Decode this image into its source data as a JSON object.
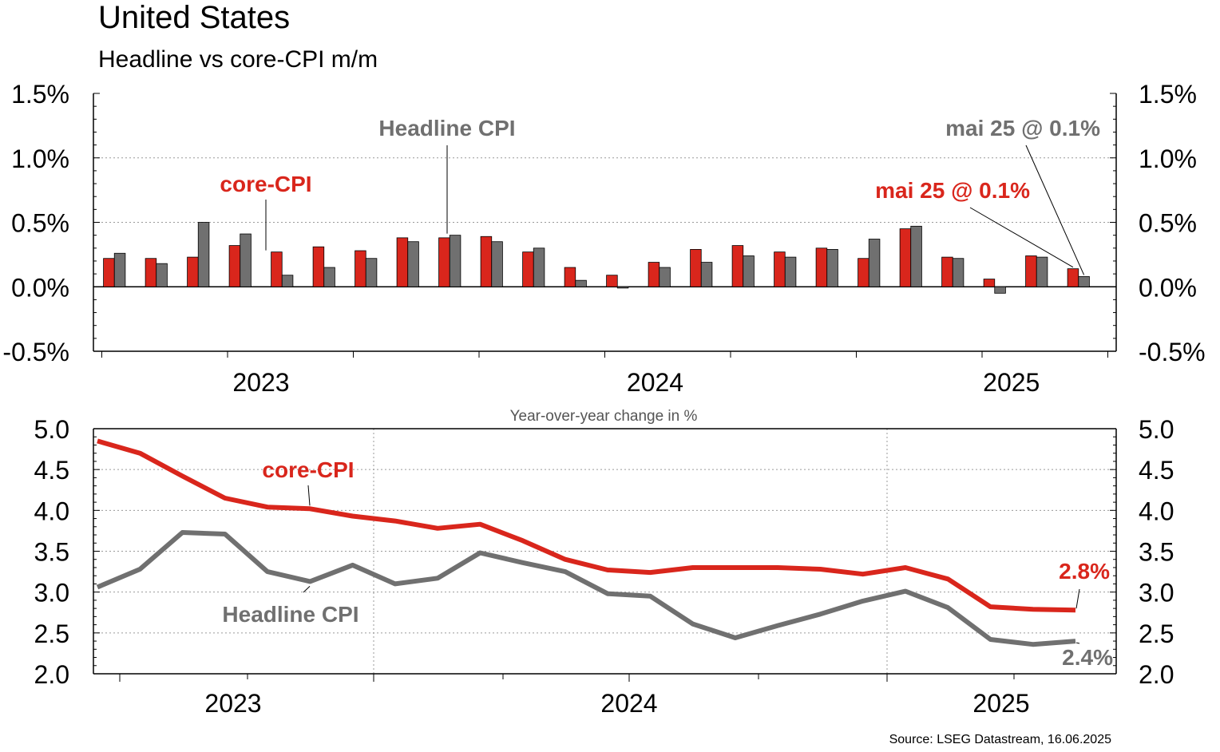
{
  "title": "United States",
  "subtitle": "Headline vs core-CPI m/m",
  "source": "Source: LSEG Datastream, 16.06.2025",
  "colors": {
    "core": "#d9261c",
    "headline": "#707070",
    "axis": "#000000",
    "grid": "#9a9a9a"
  },
  "chart_data": [
    {
      "type": "bar",
      "title": "Headline vs core-CPI m/m",
      "ylim": [
        -0.5,
        1.5
      ],
      "yticks": [
        "-0.5%",
        "0.0%",
        "0.5%",
        "1.0%",
        "1.5%"
      ],
      "yticks_values": [
        -0.5,
        0.0,
        0.5,
        1.0,
        1.5
      ],
      "xticks": [
        "2023",
        "2024",
        "2025"
      ],
      "series": [
        {
          "name": "core-CPI",
          "values": [
            0.22,
            0.22,
            0.23,
            0.32,
            0.27,
            0.31,
            0.28,
            0.38,
            0.38,
            0.39,
            0.27,
            0.15,
            0.09,
            0.19,
            0.29,
            0.32,
            0.27,
            0.3,
            0.22,
            0.45,
            0.23,
            0.06,
            0.24,
            0.14
          ]
        },
        {
          "name": "Headline CPI",
          "values": [
            0.26,
            0.18,
            0.5,
            0.41,
            0.09,
            0.15,
            0.22,
            0.35,
            0.4,
            0.35,
            0.3,
            0.05,
            -0.01,
            0.15,
            0.19,
            0.24,
            0.23,
            0.29,
            0.37,
            0.47,
            0.22,
            -0.05,
            0.23,
            0.08
          ]
        }
      ],
      "annotations": {
        "headline_label": "Headline CPI",
        "core_label": "core-CPI",
        "headline_last": "mai 25 @ 0.1%",
        "core_last": "mai 25 @ 0.1%"
      }
    },
    {
      "type": "line",
      "title": "Year-over-year change in %",
      "ylim": [
        2.0,
        5.0
      ],
      "yticks": [
        "2.0",
        "2.5",
        "3.0",
        "3.5",
        "4.0",
        "4.5",
        "5.0"
      ],
      "yticks_values": [
        2.0,
        2.5,
        3.0,
        3.5,
        4.0,
        4.5,
        5.0
      ],
      "xticks": [
        "2023",
        "2024",
        "2025"
      ],
      "series": [
        {
          "name": "core-CPI",
          "values": [
            4.85,
            4.7,
            4.42,
            4.15,
            4.04,
            4.02,
            3.93,
            3.87,
            3.78,
            3.83,
            3.63,
            3.4,
            3.27,
            3.24,
            3.3,
            3.3,
            3.3,
            3.28,
            3.22,
            3.3,
            3.16,
            2.82,
            2.79,
            2.78
          ]
        },
        {
          "name": "Headline CPI",
          "values": [
            3.06,
            3.28,
            3.73,
            3.71,
            3.25,
            3.13,
            3.33,
            3.1,
            3.17,
            3.48,
            3.36,
            3.25,
            2.98,
            2.95,
            2.61,
            2.44,
            2.59,
            2.73,
            2.89,
            3.01,
            2.81,
            2.42,
            2.36,
            2.4
          ]
        }
      ],
      "annotations": {
        "core_label": "core-CPI",
        "headline_label": "Headline CPI",
        "core_last": "2.8%",
        "headline_last": "2.4%"
      }
    }
  ]
}
